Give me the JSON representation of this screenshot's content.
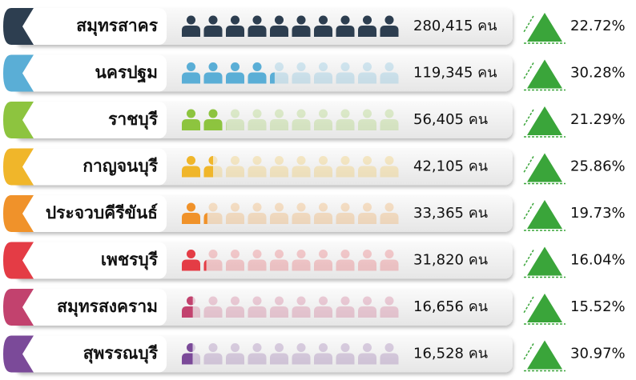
{
  "chart_data": {
    "type": "pictogram",
    "categories": [
      "สมุทรสาคร",
      "นครปฐม",
      "ราชบุรี",
      "กาญจนบุรี",
      "ประจวบคีรีขันธ์",
      "เพชรบุรี",
      "สมุทรสงคราม",
      "สุพรรณบุรี"
    ],
    "values": [
      280415,
      119345,
      56405,
      42105,
      33365,
      31820,
      16656,
      16528
    ],
    "value_labels": [
      "280,415 คน",
      "119,345 คน",
      "56,405 คน",
      "42,105 คน",
      "33,365 คน",
      "31,820 คน",
      "16,656 คน",
      "16,528 คน"
    ],
    "colors": [
      "#2d3e50",
      "#5aaed6",
      "#8dc43f",
      "#f0b62a",
      "#f0922a",
      "#e43c45",
      "#c2426e",
      "#7b4a99"
    ],
    "change": [
      22.72,
      30.28,
      21.29,
      25.86,
      19.73,
      16.04,
      15.52,
      30.97
    ],
    "change_labels": [
      "22.72%",
      "30.28%",
      "21.29%",
      "25.86%",
      "19.73%",
      "16.04%",
      "15.52%",
      "30.97%"
    ],
    "change_color": "#3aa53a"
  }
}
